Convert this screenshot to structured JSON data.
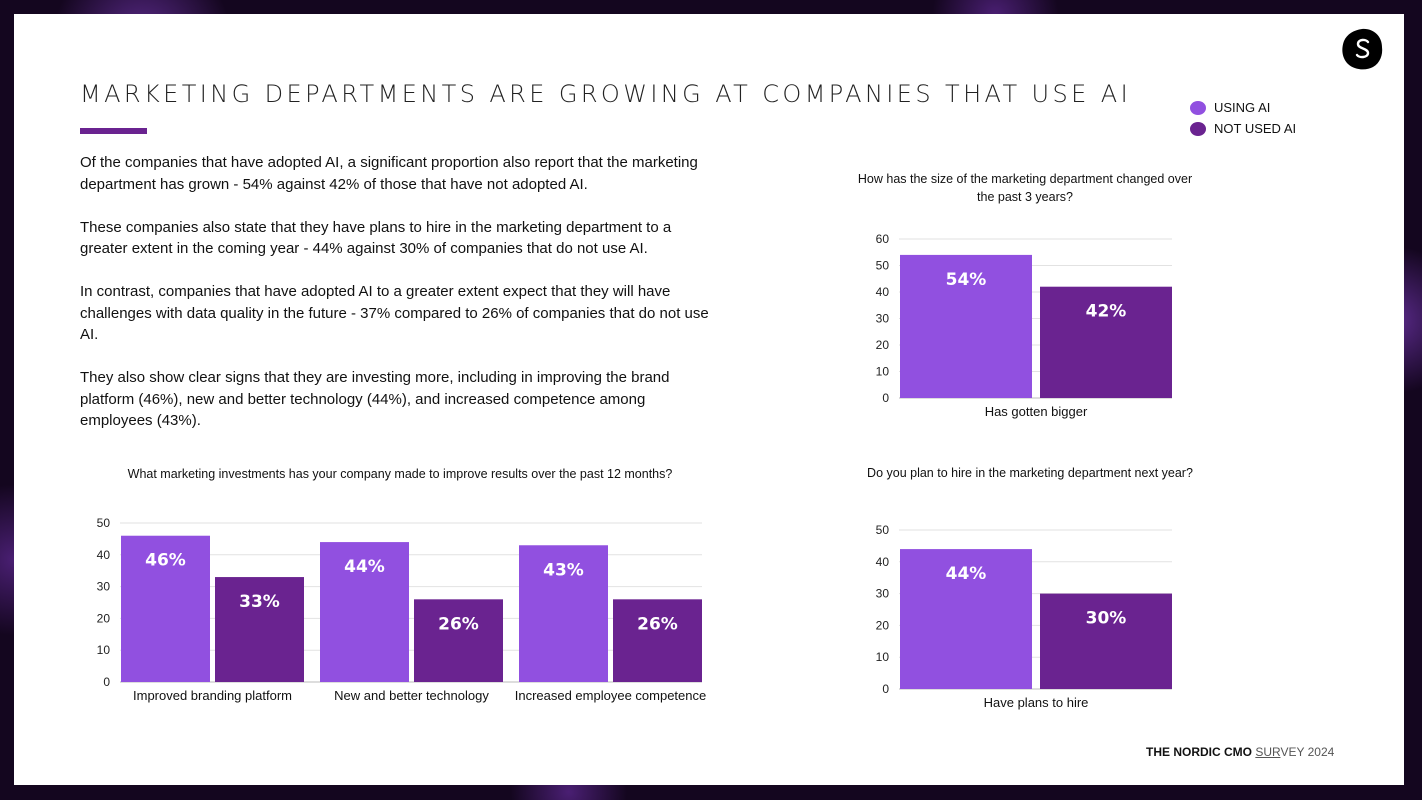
{
  "title": "MARKETING DEPARTMENTS ARE GROWING AT COMPANIES THAT USE AI",
  "colors": {
    "accent": "#6a2390",
    "using_ai": "#9150e0",
    "not_used_ai": "#6a2390"
  },
  "legend": [
    {
      "label": "USING AI",
      "color": "#9150e0"
    },
    {
      "label": "NOT USED AI",
      "color": "#6a2390"
    }
  ],
  "paragraphs": [
    "Of the companies that have adopted AI, a significant proportion also report that the marketing department has grown - 54% against 42% of those that have not adopted AI.",
    "These companies also state that they have plans to hire in the marketing department to a greater extent in the coming year - 44% against 30% of companies that do not use AI.",
    "In contrast, companies that have adopted AI to a greater extent expect that they will have challenges with data quality in the future - 37% compared to 26% of companies that do not use AI.",
    "They also show clear signs that they are investing more, including in improving the brand platform (46%), new and better technology (44%), and increased competence among employees (43%)."
  ],
  "chart_data": [
    {
      "id": "investments",
      "type": "bar",
      "title": "What marketing investments has your company made to improve results over the past 12 months?",
      "categories": [
        "Improved branding platform",
        "New and better technology",
        "Increased employee competence"
      ],
      "series": [
        {
          "name": "USING AI",
          "values": [
            46,
            44,
            43
          ],
          "labels": [
            "46%",
            "44%",
            "43%"
          ]
        },
        {
          "name": "NOT USED AI",
          "values": [
            33,
            26,
            26
          ],
          "labels": [
            "33%",
            "26%",
            "26%"
          ]
        }
      ],
      "ylim": [
        0,
        50
      ],
      "yticks": [
        0,
        10,
        20,
        30,
        40,
        50
      ],
      "grid": true
    },
    {
      "id": "size-change",
      "type": "bar",
      "title": "How has the size of the marketing department changed over the past 3 years?",
      "categories": [
        "Has gotten bigger"
      ],
      "series": [
        {
          "name": "USING AI",
          "values": [
            54
          ],
          "labels": [
            "54%"
          ]
        },
        {
          "name": "NOT USED AI",
          "values": [
            42
          ],
          "labels": [
            "42%"
          ]
        }
      ],
      "ylim": [
        0,
        60
      ],
      "yticks": [
        0,
        10,
        20,
        30,
        40,
        50,
        60
      ],
      "grid": true
    },
    {
      "id": "hire-plans",
      "type": "bar",
      "title": "Do you plan to hire in the marketing department next year?",
      "categories": [
        "Have plans to hire"
      ],
      "series": [
        {
          "name": "USING AI",
          "values": [
            44
          ],
          "labels": [
            "44%"
          ]
        },
        {
          "name": "NOT USED AI",
          "values": [
            30
          ],
          "labels": [
            "30%"
          ]
        }
      ],
      "ylim": [
        0,
        50
      ],
      "yticks": [
        0,
        10,
        20,
        30,
        40,
        50
      ],
      "grid": true
    }
  ],
  "footer": {
    "bold": "THE NORDIC CMO",
    "underlined": "SUR",
    "rest": "VEY 2024"
  }
}
